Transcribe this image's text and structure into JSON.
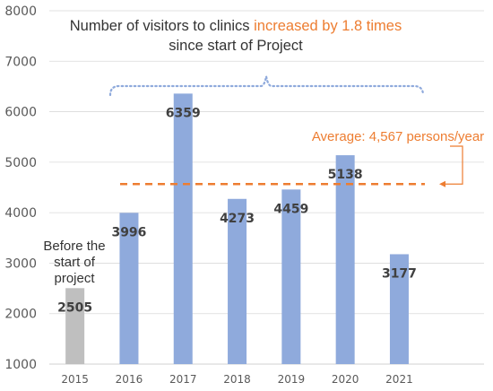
{
  "chart_data": {
    "type": "bar",
    "title_parts": [
      "Number of visitors to clinics ",
      "increased by 1.8 times",
      "since start of Project"
    ],
    "categories": [
      "2015",
      "2016",
      "2017",
      "2018",
      "2019",
      "2020",
      "2021"
    ],
    "values": [
      2505,
      3996,
      6359,
      4273,
      4459,
      5138,
      3177
    ],
    "data_labels": [
      "2505",
      "3996",
      "6359",
      "4273",
      "4459",
      "5138",
      "3177"
    ],
    "y_ticks": [
      "1000",
      "2000",
      "3000",
      "4000",
      "5000",
      "6000",
      "7000",
      "8000"
    ],
    "ylim": [
      1000,
      8000
    ],
    "grid": true,
    "before_project_note": [
      "Before the",
      "start of",
      "project"
    ],
    "average": {
      "value": 4567,
      "label": "Average: 4,567 persons/year"
    },
    "colors": {
      "project_bar": "#8FAADC",
      "before_bar": "#BFBFBF",
      "highlight": "#ED7D31",
      "bracket": "#8FAADC",
      "grid": "#D9D9D9"
    }
  }
}
